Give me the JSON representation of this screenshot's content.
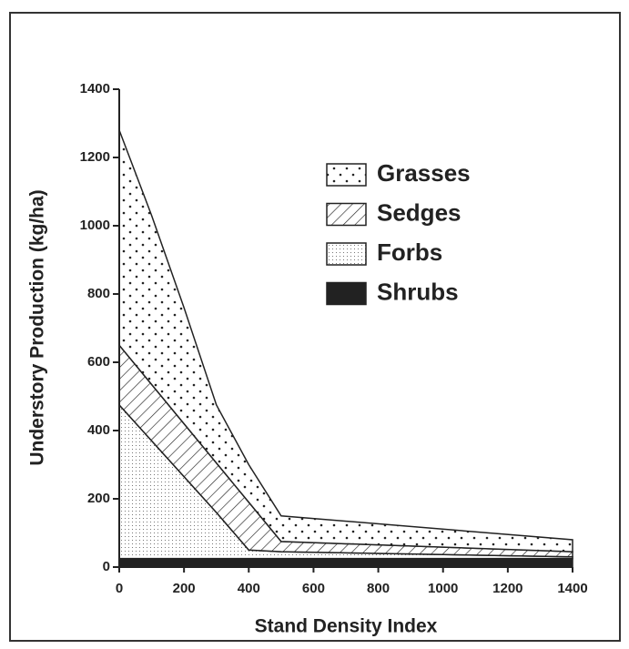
{
  "chart_data": {
    "type": "stacked_area",
    "x": [
      0,
      100,
      200,
      300,
      400,
      500,
      1400
    ],
    "series": [
      {
        "name": "Grasses",
        "color": "#222",
        "values": [
          630,
          495,
          340,
          170,
          110,
          75,
          35
        ]
      },
      {
        "name": "Sedges",
        "color": "#222",
        "values": [
          175,
          165,
          155,
          145,
          140,
          30,
          15
        ]
      },
      {
        "name": "Forbs",
        "color": "#222",
        "values": [
          450,
          345,
          240,
          135,
          25,
          20,
          5
        ]
      },
      {
        "name": "Shrubs",
        "color": "#222",
        "values": [
          25,
          25,
          25,
          25,
          25,
          25,
          25
        ]
      }
    ],
    "xlabel": "Stand Density Index",
    "ylabel": "Understory Production (kg/ha)",
    "xlim": [
      0,
      1400
    ],
    "xticks": [
      0,
      200,
      400,
      600,
      800,
      1000,
      1200,
      1400
    ],
    "ylim": [
      0,
      1400
    ],
    "yticks": [
      0,
      200,
      400,
      600,
      800,
      1000,
      1200,
      1400
    ]
  }
}
